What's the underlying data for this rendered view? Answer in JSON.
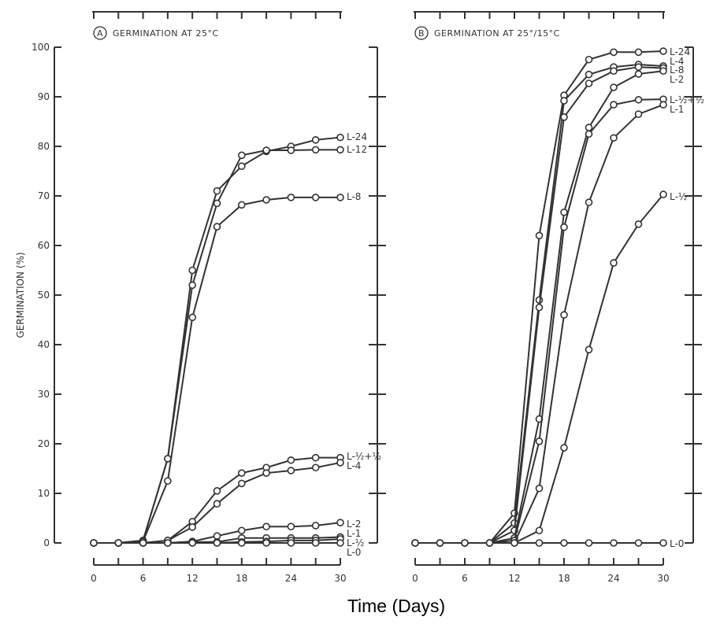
{
  "chart_data": [
    {
      "type": "line",
      "panel": "A",
      "title": "GERMINATION AT 25°C",
      "xlabel": "Time (Days)",
      "ylabel": "GERMINATION (%)",
      "xlim": [
        0,
        30
      ],
      "ylim": [
        0,
        100
      ],
      "x_ticks": [
        0,
        6,
        12,
        18,
        24,
        30
      ],
      "y_ticks": [
        0,
        10,
        20,
        30,
        40,
        50,
        60,
        70,
        80,
        90,
        100
      ],
      "grid": false,
      "marker": "open-circle",
      "x": [
        0,
        3,
        6,
        9,
        12,
        15,
        18,
        21,
        24,
        27,
        30
      ],
      "series": [
        {
          "name": "L-24",
          "values": [
            0,
            0,
            0.5,
            17,
            55,
            71,
            76,
            79,
            80,
            81.3,
            81.8
          ]
        },
        {
          "name": "L-12",
          "values": [
            0,
            0,
            0.5,
            17,
            52,
            68.5,
            78.2,
            79.2,
            79.2,
            79.3,
            79.3
          ]
        },
        {
          "name": "L-8",
          "values": [
            0,
            0,
            0.3,
            12.5,
            45.5,
            63.8,
            68.2,
            69.2,
            69.7,
            69.7,
            69.7
          ]
        },
        {
          "name": "L-½+½",
          "values": [
            0,
            0,
            0,
            0.5,
            4.3,
            10.5,
            14.1,
            15.2,
            16.7,
            17.2,
            17.2
          ]
        },
        {
          "name": "L-4",
          "values": [
            0,
            0,
            0,
            0.5,
            3.2,
            7.9,
            12,
            14.1,
            14.6,
            15.2,
            16.2
          ]
        },
        {
          "name": "L-2",
          "values": [
            0,
            0,
            0,
            0,
            0.3,
            1.4,
            2.5,
            3.3,
            3.3,
            3.5,
            4.1
          ]
        },
        {
          "name": "L-1",
          "values": [
            0,
            0,
            0,
            0,
            0.2,
            0.2,
            1.0,
            1.0,
            1.0,
            1.0,
            1.2
          ]
        },
        {
          "name": "L-½",
          "values": [
            0,
            0,
            0,
            0,
            0,
            0,
            0.2,
            0.3,
            0.5,
            0.5,
            0.8
          ]
        },
        {
          "name": "L-0",
          "values": [
            0,
            0,
            0,
            0,
            0,
            0,
            0,
            0,
            0,
            0,
            0
          ]
        }
      ]
    },
    {
      "type": "line",
      "panel": "B",
      "title": "GERMINATION AT 25°/15°C",
      "xlabel": "Time (Days)",
      "xlim": [
        0,
        30
      ],
      "ylim": [
        0,
        100
      ],
      "x_ticks": [
        0,
        6,
        12,
        18,
        24,
        30
      ],
      "grid": false,
      "marker": "open-circle",
      "x": [
        0,
        3,
        6,
        9,
        12,
        15,
        18,
        21,
        24,
        27,
        30
      ],
      "series": [
        {
          "name": "L-24",
          "values": [
            0,
            0,
            0,
            0,
            6,
            62,
            90.3,
            97.5,
            99,
            99,
            99.2
          ]
        },
        {
          "name": "L-4",
          "values": [
            0,
            0,
            0,
            0,
            4,
            49,
            89.2,
            94.5,
            96,
            96.5,
            96.2
          ]
        },
        {
          "name": "L-8",
          "values": [
            0,
            0,
            0,
            0,
            2.5,
            47.5,
            85.9,
            92.7,
            95.2,
            96,
            95.8
          ]
        },
        {
          "name": "L-2",
          "values": [
            0,
            0,
            0,
            0,
            1,
            25,
            66.7,
            83.8,
            91.9,
            94.6,
            95.2
          ]
        },
        {
          "name": "L-½+½",
          "values": [
            0,
            0,
            0,
            0,
            0.5,
            20.5,
            63.7,
            82.5,
            88.4,
            89.4,
            89.5
          ]
        },
        {
          "name": "L-1",
          "values": [
            0,
            0,
            0,
            0,
            0,
            11,
            46,
            68.7,
            81.7,
            86.5,
            88.4
          ]
        },
        {
          "name": "L-½",
          "values": [
            0,
            0,
            0,
            0,
            0,
            2.5,
            19.2,
            39,
            56.5,
            64.3,
            70.3
          ]
        },
        {
          "name": "L-0",
          "values": [
            0,
            0,
            0,
            0,
            0,
            0,
            0,
            0,
            0,
            0,
            0
          ]
        }
      ]
    }
  ],
  "panel_letters": [
    "A",
    "B"
  ]
}
